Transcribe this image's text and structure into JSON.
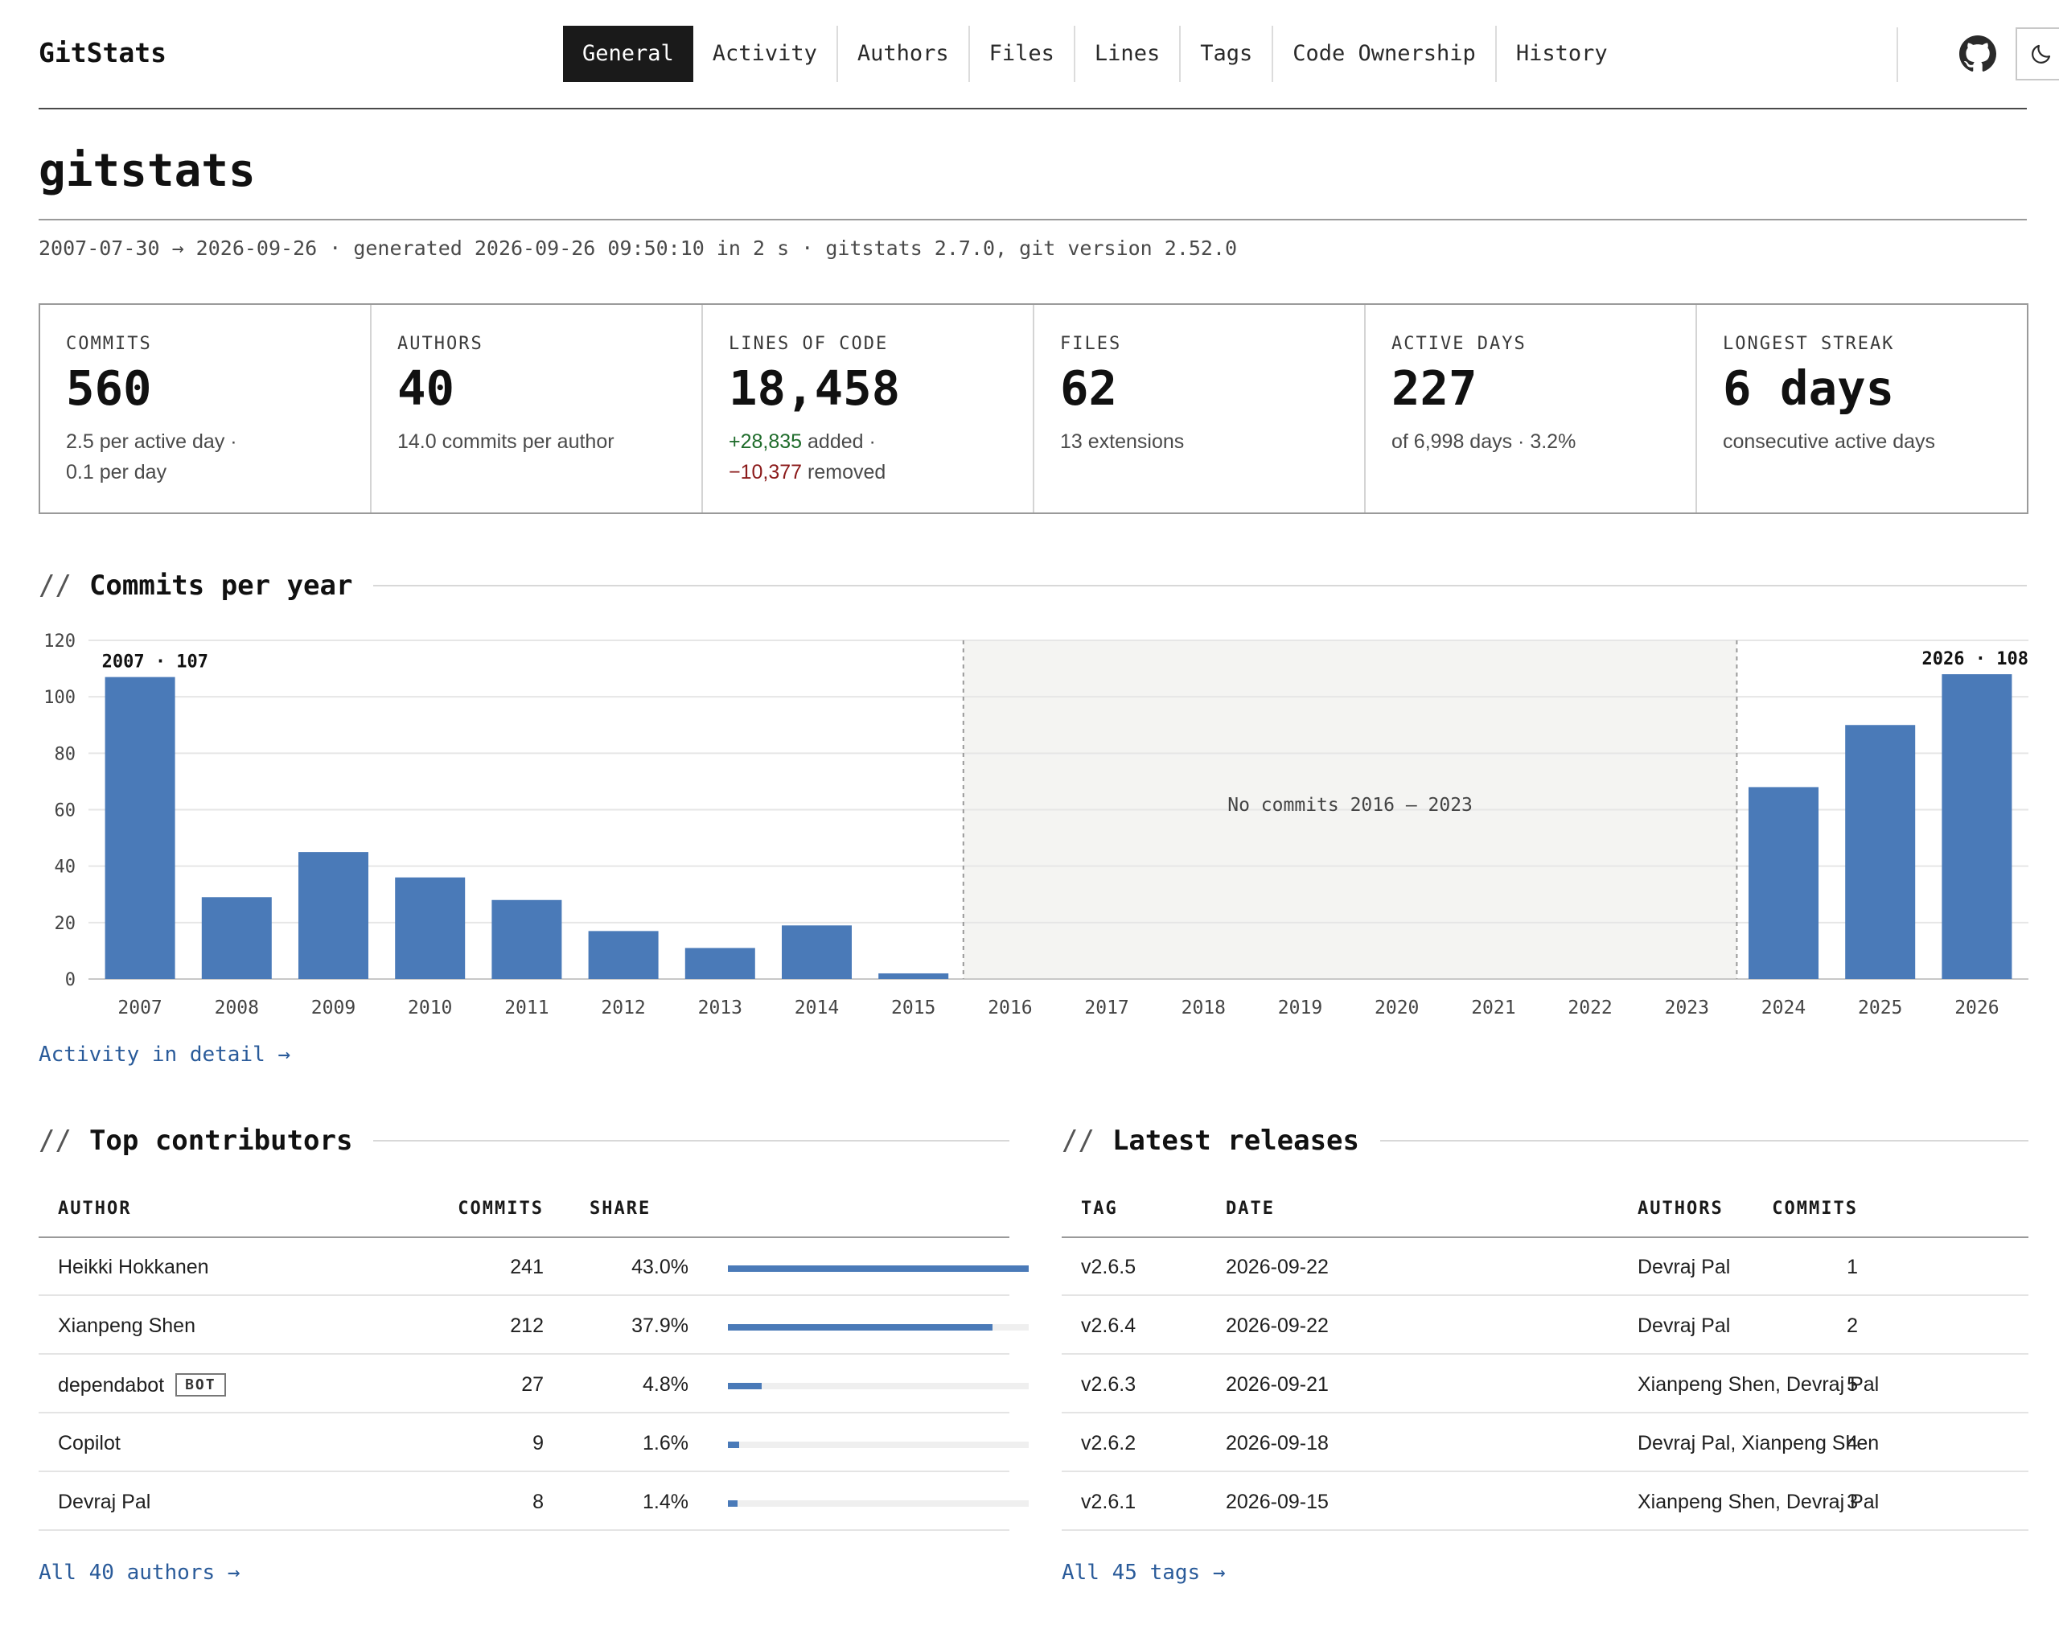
{
  "app": {
    "logo": "GitStats",
    "nav": [
      {
        "label": "General",
        "active": true
      },
      {
        "label": "Activity",
        "active": false
      },
      {
        "label": "Authors",
        "active": false
      },
      {
        "label": "Files",
        "active": false
      },
      {
        "label": "Lines",
        "active": false
      },
      {
        "label": "Tags",
        "active": false
      },
      {
        "label": "Code Ownership",
        "active": false
      },
      {
        "label": "History",
        "active": false
      }
    ],
    "icons": {
      "github": "github-icon",
      "theme": "moon-icon"
    }
  },
  "page": {
    "title": "gitstats",
    "meta": "2007-07-30 → 2026-09-26 · generated 2026-09-26 09:50:10 in 2 s · gitstats 2.7.0, git version 2.52.0"
  },
  "stats": {
    "commits": {
      "label": "COMMITS",
      "value": "560",
      "sub1": "2.5 per active day ·",
      "sub2": "0.1 per day"
    },
    "authors": {
      "label": "AUTHORS",
      "value": "40",
      "sub1": "14.0 commits per author"
    },
    "loc": {
      "label": "LINES OF CODE",
      "value": "18,458",
      "added": "+28,835",
      "added_suffix": " added ·",
      "removed": "−10,377",
      "removed_suffix": " removed"
    },
    "files": {
      "label": "FILES",
      "value": "62",
      "sub1": "13 extensions"
    },
    "active_days": {
      "label": "ACTIVE DAYS",
      "value": "227",
      "sub1": "of 6,998 days · 3.2%"
    },
    "streak": {
      "label": "LONGEST STREAK",
      "value": "6 days",
      "sub1": "consecutive active days"
    }
  },
  "sections": {
    "commits_per_year": {
      "slash": "//",
      "title": "Commits per year",
      "link": "Activity in detail →"
    },
    "top_contributors": {
      "slash": "//",
      "title": "Top contributors",
      "link": "All 40 authors →"
    },
    "latest_releases": {
      "slash": "//",
      "title": "Latest releases",
      "link": "All 45 tags →"
    }
  },
  "chart_data": {
    "type": "bar",
    "categories": [
      "2007",
      "2008",
      "2009",
      "2010",
      "2011",
      "2012",
      "2013",
      "2014",
      "2015",
      "2016",
      "2017",
      "2018",
      "2019",
      "2020",
      "2021",
      "2022",
      "2023",
      "2024",
      "2025",
      "2026"
    ],
    "values": [
      107,
      29,
      45,
      36,
      28,
      17,
      11,
      19,
      2,
      0,
      0,
      0,
      0,
      0,
      0,
      0,
      0,
      68,
      90,
      108
    ],
    "ylim": [
      0,
      120
    ],
    "yticks": [
      0,
      20,
      40,
      60,
      80,
      100,
      120
    ],
    "grid": true,
    "color": "#4a7ab8",
    "annotations": [
      {
        "category": "2007",
        "text": "2007 · 107"
      },
      {
        "category": "2026",
        "text": "2026 · 108"
      }
    ],
    "gap": {
      "from": "2016",
      "to": "2023",
      "text": "No commits 2016 – 2023"
    }
  },
  "contributors": {
    "headers": {
      "author": "AUTHOR",
      "commits": "COMMITS",
      "share": "SHARE"
    },
    "rows": [
      {
        "author": "Heikki Hokkanen",
        "commits": "241",
        "share": "43.0%",
        "fraction": 1.0,
        "badge": ""
      },
      {
        "author": "Xianpeng Shen",
        "commits": "212",
        "share": "37.9%",
        "fraction": 0.88,
        "badge": ""
      },
      {
        "author": "dependabot",
        "commits": "27",
        "share": "4.8%",
        "fraction": 0.112,
        "badge": "BOT"
      },
      {
        "author": "Copilot",
        "commits": "9",
        "share": "1.6%",
        "fraction": 0.037,
        "badge": ""
      },
      {
        "author": "Devraj Pal",
        "commits": "8",
        "share": "1.4%",
        "fraction": 0.033,
        "badge": ""
      }
    ],
    "bar_color": "#4a7ab8"
  },
  "releases": {
    "headers": {
      "tag": "TAG",
      "date": "DATE",
      "commits": "COMMITS",
      "authors": "AUTHORS"
    },
    "rows": [
      {
        "tag": "v2.6.5",
        "date": "2026-09-22",
        "commits": "1",
        "authors": "Devraj Pal"
      },
      {
        "tag": "v2.6.4",
        "date": "2026-09-22",
        "commits": "2",
        "authors": "Devraj Pal"
      },
      {
        "tag": "v2.6.3",
        "date": "2026-09-21",
        "commits": "5",
        "authors": "Xianpeng Shen, Devraj Pal"
      },
      {
        "tag": "v2.6.2",
        "date": "2026-09-18",
        "commits": "4",
        "authors": "Devraj Pal, Xianpeng Shen"
      },
      {
        "tag": "v2.6.1",
        "date": "2026-09-15",
        "commits": "3",
        "authors": "Xianpeng Shen, Devraj Pal"
      }
    ]
  }
}
